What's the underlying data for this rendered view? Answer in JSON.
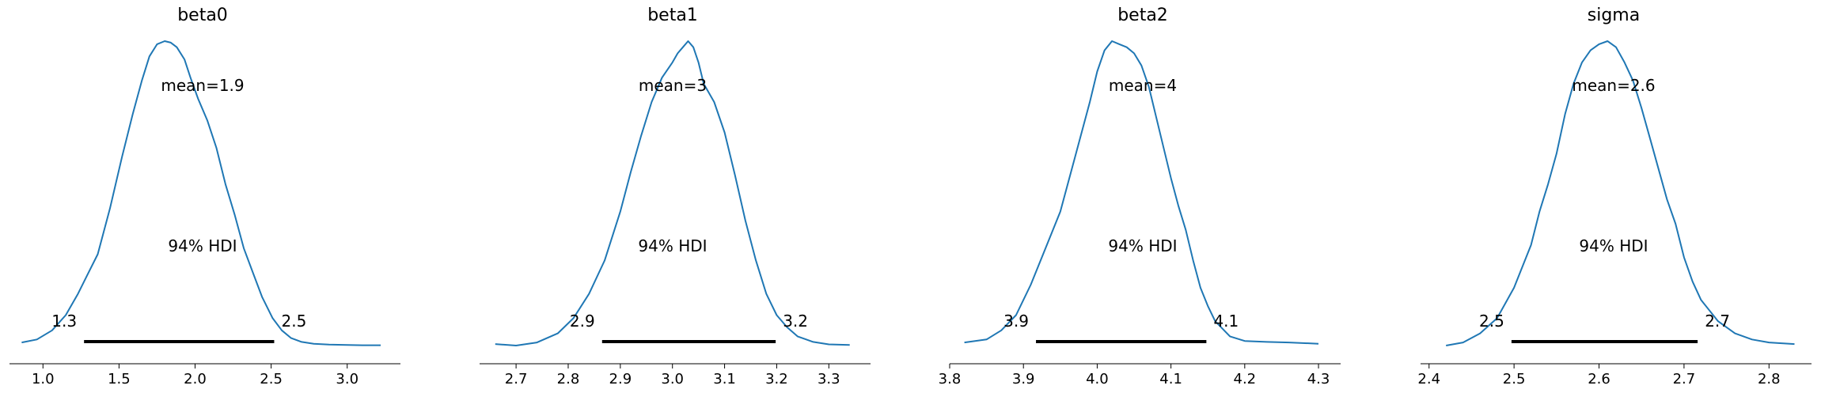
{
  "chart_data": [
    {
      "type": "line",
      "title": "beta0",
      "mean_label": "mean=1.9",
      "hdi_label": "94% HDI",
      "hdi_low": 1.27,
      "hdi_high": 2.52,
      "hdi_low_label": "1.3",
      "hdi_high_label": "2.5",
      "xlim": [
        0.78,
        3.35
      ],
      "xticks": [
        1.0,
        1.5,
        2.0,
        2.5,
        3.0
      ],
      "xtick_labels": [
        "1.0",
        "1.5",
        "2.0",
        "2.5",
        "3.0"
      ],
      "x": [
        0.86,
        0.96,
        1.06,
        1.15,
        1.23,
        1.29,
        1.36,
        1.44,
        1.52,
        1.59,
        1.65,
        1.7,
        1.75,
        1.8,
        1.84,
        1.88,
        1.93,
        1.97,
        2.02,
        2.08,
        2.14,
        2.2,
        2.26,
        2.32,
        2.38,
        2.44,
        2.51,
        2.57,
        2.63,
        2.7,
        2.78,
        2.88,
        3.0,
        3.1,
        3.22
      ],
      "y": [
        0.01,
        0.02,
        0.05,
        0.1,
        0.17,
        0.23,
        0.3,
        0.45,
        0.62,
        0.76,
        0.87,
        0.95,
        0.99,
        1.0,
        0.995,
        0.98,
        0.94,
        0.88,
        0.81,
        0.74,
        0.65,
        0.53,
        0.43,
        0.32,
        0.24,
        0.16,
        0.09,
        0.05,
        0.025,
        0.012,
        0.006,
        0.003,
        0.002,
        0.001,
        0.001
      ]
    },
    {
      "type": "line",
      "title": "beta1",
      "mean_label": "mean=3",
      "hdi_label": "94% HDI",
      "hdi_low": 2.865,
      "hdi_high": 3.198,
      "hdi_low_label": "2.9",
      "hdi_high_label": "3.2",
      "xlim": [
        2.63,
        3.38
      ],
      "xticks": [
        2.7,
        2.8,
        2.9,
        3.0,
        3.1,
        3.2,
        3.3
      ],
      "xtick_labels": [
        "2.7",
        "2.8",
        "2.9",
        "3.0",
        "3.1",
        "3.2",
        "3.3"
      ],
      "x": [
        2.66,
        2.7,
        2.74,
        2.78,
        2.81,
        2.84,
        2.87,
        2.9,
        2.92,
        2.94,
        2.96,
        2.98,
        3.0,
        3.01,
        3.02,
        3.03,
        3.04,
        3.05,
        3.06,
        3.08,
        3.1,
        3.12,
        3.14,
        3.16,
        3.18,
        3.2,
        3.22,
        3.24,
        3.27,
        3.3,
        3.34
      ],
      "y": [
        0.005,
        0.0,
        0.01,
        0.04,
        0.09,
        0.17,
        0.28,
        0.44,
        0.57,
        0.69,
        0.8,
        0.88,
        0.93,
        0.96,
        0.98,
        1.0,
        0.98,
        0.93,
        0.86,
        0.8,
        0.7,
        0.56,
        0.41,
        0.28,
        0.17,
        0.1,
        0.06,
        0.03,
        0.012,
        0.004,
        0.002
      ]
    },
    {
      "type": "line",
      "title": "beta2",
      "mean_label": "mean=4",
      "hdi_label": "94% HDI",
      "hdi_low": 3.917,
      "hdi_high": 4.148,
      "hdi_low_label": "3.9",
      "hdi_high_label": "4.1",
      "xlim": [
        3.8,
        4.33
      ],
      "xticks": [
        3.8,
        3.9,
        4.0,
        4.1,
        4.2,
        4.3
      ],
      "xtick_labels": [
        "3.8",
        "3.9",
        "4.0",
        "4.1",
        "4.2",
        "4.3"
      ],
      "x": [
        3.82,
        3.85,
        3.87,
        3.89,
        3.91,
        3.93,
        3.95,
        3.97,
        3.99,
        4.0,
        4.01,
        4.02,
        4.03,
        4.04,
        4.05,
        4.06,
        4.07,
        4.08,
        4.09,
        4.1,
        4.11,
        4.12,
        4.13,
        4.14,
        4.15,
        4.16,
        4.18,
        4.2,
        4.23,
        4.26,
        4.3
      ],
      "y": [
        0.01,
        0.02,
        0.05,
        0.1,
        0.2,
        0.32,
        0.44,
        0.62,
        0.8,
        0.9,
        0.97,
        1.0,
        0.99,
        0.98,
        0.96,
        0.92,
        0.85,
        0.75,
        0.65,
        0.55,
        0.46,
        0.38,
        0.28,
        0.19,
        0.13,
        0.08,
        0.03,
        0.015,
        0.012,
        0.01,
        0.006
      ]
    },
    {
      "type": "line",
      "title": "sigma",
      "mean_label": "mean=2.6",
      "hdi_label": "94% HDI",
      "hdi_low": 2.497,
      "hdi_high": 2.716,
      "hdi_low_label": "2.5",
      "hdi_high_label": "2.7",
      "xlim": [
        2.39,
        2.85
      ],
      "xticks": [
        2.4,
        2.5,
        2.6,
        2.7,
        2.8
      ],
      "xtick_labels": [
        "2.4",
        "2.5",
        "2.6",
        "2.7",
        "2.8"
      ],
      "x": [
        2.42,
        2.44,
        2.46,
        2.48,
        2.5,
        2.52,
        2.53,
        2.54,
        2.55,
        2.56,
        2.57,
        2.58,
        2.59,
        2.6,
        2.61,
        2.62,
        2.63,
        2.64,
        2.65,
        2.66,
        2.67,
        2.68,
        2.69,
        2.7,
        2.71,
        2.72,
        2.74,
        2.76,
        2.78,
        2.8,
        2.83
      ],
      "y": [
        0.0,
        0.01,
        0.04,
        0.09,
        0.19,
        0.33,
        0.44,
        0.53,
        0.63,
        0.76,
        0.86,
        0.93,
        0.97,
        0.99,
        1.0,
        0.98,
        0.93,
        0.87,
        0.78,
        0.68,
        0.58,
        0.48,
        0.4,
        0.29,
        0.21,
        0.15,
        0.08,
        0.04,
        0.02,
        0.01,
        0.005
      ]
    }
  ],
  "colors": {
    "kde": "#1f77b4",
    "hdi": "#000000"
  }
}
